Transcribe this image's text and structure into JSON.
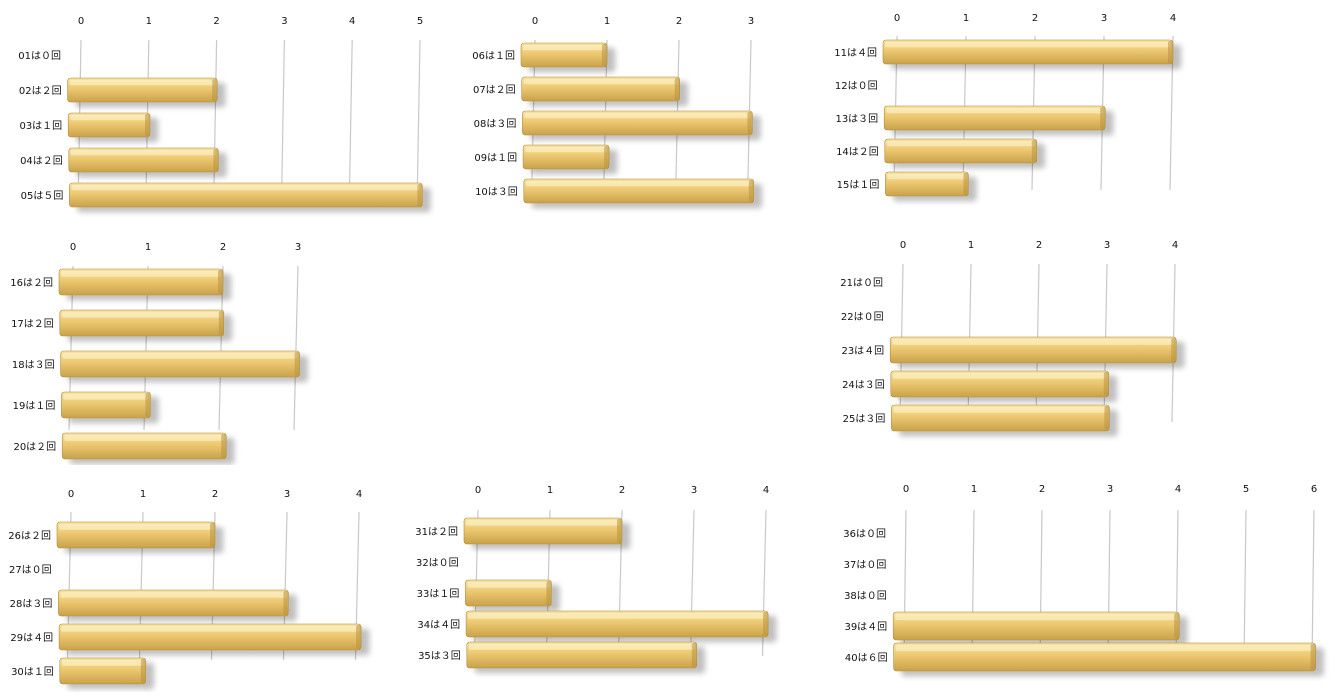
{
  "chart_data": [
    {
      "type": "bar",
      "orientation": "horizontal",
      "panel": "p1",
      "xlim": [
        0,
        5
      ],
      "ticks": [
        "0",
        "1",
        "2",
        "3",
        "4",
        "5"
      ],
      "categories": [
        "01は０回",
        "02は２回",
        "03は１回",
        "04は２回",
        "05は５回"
      ],
      "values": [
        0,
        2,
        1,
        2,
        5
      ]
    },
    {
      "type": "bar",
      "orientation": "horizontal",
      "panel": "p2",
      "xlim": [
        0,
        3
      ],
      "ticks": [
        "0",
        "1",
        "2",
        "3"
      ],
      "categories": [
        "06は１回",
        "07は２回",
        "08は３回",
        "09は１回",
        "10は３回"
      ],
      "values": [
        1,
        2,
        3,
        1,
        3
      ]
    },
    {
      "type": "bar",
      "orientation": "horizontal",
      "panel": "p3",
      "xlim": [
        0,
        4
      ],
      "ticks": [
        "0",
        "1",
        "2",
        "3",
        "4"
      ],
      "categories": [
        "11は４回",
        "12は０回",
        "13は３回",
        "14は２回",
        "15は１回"
      ],
      "values": [
        4,
        0,
        3,
        2,
        1
      ]
    },
    {
      "type": "bar",
      "orientation": "horizontal",
      "panel": "p4",
      "xlim": [
        0,
        3
      ],
      "ticks": [
        "0",
        "1",
        "2",
        "3"
      ],
      "categories": [
        "16は２回",
        "17は２回",
        "18は３回",
        "19は１回",
        "20は２回"
      ],
      "values": [
        2,
        2,
        3,
        1,
        2
      ]
    },
    {
      "type": "bar",
      "orientation": "horizontal",
      "panel": "p6",
      "xlim": [
        0,
        4
      ],
      "ticks": [
        "0",
        "1",
        "2",
        "3",
        "4"
      ],
      "categories": [
        "21は０回",
        "22は０回",
        "23は４回",
        "24は３回",
        "25は３回"
      ],
      "values": [
        0,
        0,
        4,
        3,
        3
      ]
    },
    {
      "type": "bar",
      "orientation": "horizontal",
      "panel": "p7",
      "xlim": [
        0,
        4
      ],
      "ticks": [
        "0",
        "1",
        "2",
        "3",
        "4"
      ],
      "categories": [
        "26は２回",
        "27は０回",
        "28は３回",
        "29は４回",
        "30は１回"
      ],
      "values": [
        2,
        0,
        3,
        4,
        1
      ]
    },
    {
      "type": "bar",
      "orientation": "horizontal",
      "panel": "p8",
      "xlim": [
        0,
        4
      ],
      "ticks": [
        "0",
        "1",
        "2",
        "3",
        "4"
      ],
      "categories": [
        "31は２回",
        "32は０回",
        "33は１回",
        "34は４回",
        "35は３回"
      ],
      "values": [
        2,
        0,
        1,
        4,
        3
      ]
    },
    {
      "type": "bar",
      "orientation": "horizontal",
      "panel": "p9",
      "xlim": [
        0,
        6
      ],
      "ticks": [
        "0",
        "1",
        "2",
        "3",
        "4",
        "5",
        "6"
      ],
      "categories": [
        "36は０回",
        "37は０回",
        "38は０回",
        "39は４回",
        "40は６回"
      ],
      "values": [
        0,
        0,
        0,
        4,
        6
      ]
    }
  ],
  "colors": {
    "bar_light": "#f7e3a0",
    "bar_mid": "#ecc870",
    "bar_dark": "#c9a24a",
    "grid": "#c8c8c8"
  }
}
